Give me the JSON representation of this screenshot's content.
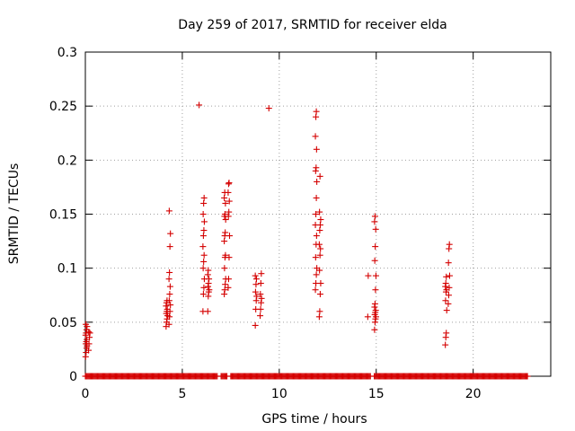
{
  "chart_data": {
    "type": "scatter",
    "title": "Day 259 of 2017, SRMTID for receiver elda",
    "xlabel": "GPS time / hours",
    "ylabel": "SRMTID / TECUs",
    "xlim": [
      0,
      24
    ],
    "ylim": [
      0,
      0.3
    ],
    "xticks": [
      0,
      5,
      10,
      15,
      20
    ],
    "xtick_labels": [
      "0",
      "5",
      "10",
      "15",
      "20"
    ],
    "yticks": [
      0,
      0.05,
      0.1,
      0.15,
      0.2,
      0.25,
      0.3
    ],
    "ytick_labels": [
      "0",
      "0.05",
      "0.1",
      "0.15",
      "0.2",
      "0.25",
      "0.3"
    ],
    "grid": true,
    "marker": "+",
    "color": "#d40000",
    "baseline_zero_ranges": [
      [
        0.0,
        6.8
      ],
      [
        7.0,
        7.3
      ],
      [
        7.5,
        14.7
      ],
      [
        14.9,
        22.8
      ]
    ],
    "clusters": [
      {
        "x": 0.05,
        "y": [
          0.018,
          0.022,
          0.026,
          0.028,
          0.03,
          0.032,
          0.034,
          0.038,
          0.04,
          0.043,
          0.046,
          0.048
        ]
      },
      {
        "x": 0.2,
        "y": [
          0.024,
          0.03,
          0.036,
          0.04,
          0.041
        ]
      },
      {
        "x": 4.2,
        "y": [
          0.046,
          0.05,
          0.053,
          0.056,
          0.058,
          0.06,
          0.062,
          0.065,
          0.068,
          0.07
        ]
      },
      {
        "x": 4.35,
        "y": [
          0.048,
          0.055,
          0.06,
          0.066,
          0.07,
          0.076,
          0.083,
          0.09,
          0.096,
          0.12,
          0.132,
          0.153
        ]
      },
      {
        "x": 5.9,
        "y": [
          0.251
        ]
      },
      {
        "x": 6.1,
        "y": [
          0.06,
          0.076,
          0.082,
          0.09,
          0.1,
          0.106,
          0.112,
          0.12,
          0.13,
          0.135,
          0.143,
          0.15,
          0.16,
          0.165
        ]
      },
      {
        "x": 6.35,
        "y": [
          0.06,
          0.074,
          0.078,
          0.08,
          0.083,
          0.086,
          0.09,
          0.094,
          0.098
        ]
      },
      {
        "x": 7.2,
        "y": [
          0.076,
          0.08,
          0.085,
          0.09,
          0.1,
          0.11,
          0.112,
          0.125,
          0.13,
          0.133,
          0.145,
          0.148,
          0.15,
          0.16,
          0.165,
          0.17
        ]
      },
      {
        "x": 7.4,
        "y": [
          0.082,
          0.09,
          0.11,
          0.13,
          0.148,
          0.152,
          0.162,
          0.17,
          0.178,
          0.179
        ]
      },
      {
        "x": 8.8,
        "y": [
          0.047,
          0.062,
          0.07,
          0.074,
          0.078,
          0.085,
          0.09,
          0.093
        ]
      },
      {
        "x": 9.05,
        "y": [
          0.056,
          0.062,
          0.068,
          0.072,
          0.076,
          0.086,
          0.095
        ]
      },
      {
        "x": 9.5,
        "y": [
          0.248
        ]
      },
      {
        "x": 11.9,
        "y": [
          0.08,
          0.086,
          0.094,
          0.1,
          0.11,
          0.122,
          0.13,
          0.14,
          0.15,
          0.165,
          0.18,
          0.19,
          0.193,
          0.21,
          0.222,
          0.24,
          0.245
        ]
      },
      {
        "x": 12.1,
        "y": [
          0.055,
          0.06,
          0.076,
          0.086,
          0.098,
          0.112,
          0.118,
          0.122,
          0.135,
          0.14,
          0.145,
          0.152,
          0.185
        ]
      },
      {
        "x": 14.6,
        "y": [
          0.055,
          0.093
        ]
      },
      {
        "x": 14.95,
        "y": [
          0.043,
          0.05,
          0.053,
          0.055,
          0.057,
          0.059,
          0.061,
          0.064,
          0.067,
          0.08,
          0.093,
          0.107,
          0.12,
          0.136,
          0.143,
          0.148
        ]
      },
      {
        "x": 18.6,
        "y": [
          0.029,
          0.036,
          0.04,
          0.061,
          0.07,
          0.078,
          0.08,
          0.083,
          0.086,
          0.092
        ]
      },
      {
        "x": 18.75,
        "y": [
          0.067,
          0.075,
          0.082,
          0.093,
          0.105,
          0.118,
          0.122
        ]
      }
    ]
  }
}
